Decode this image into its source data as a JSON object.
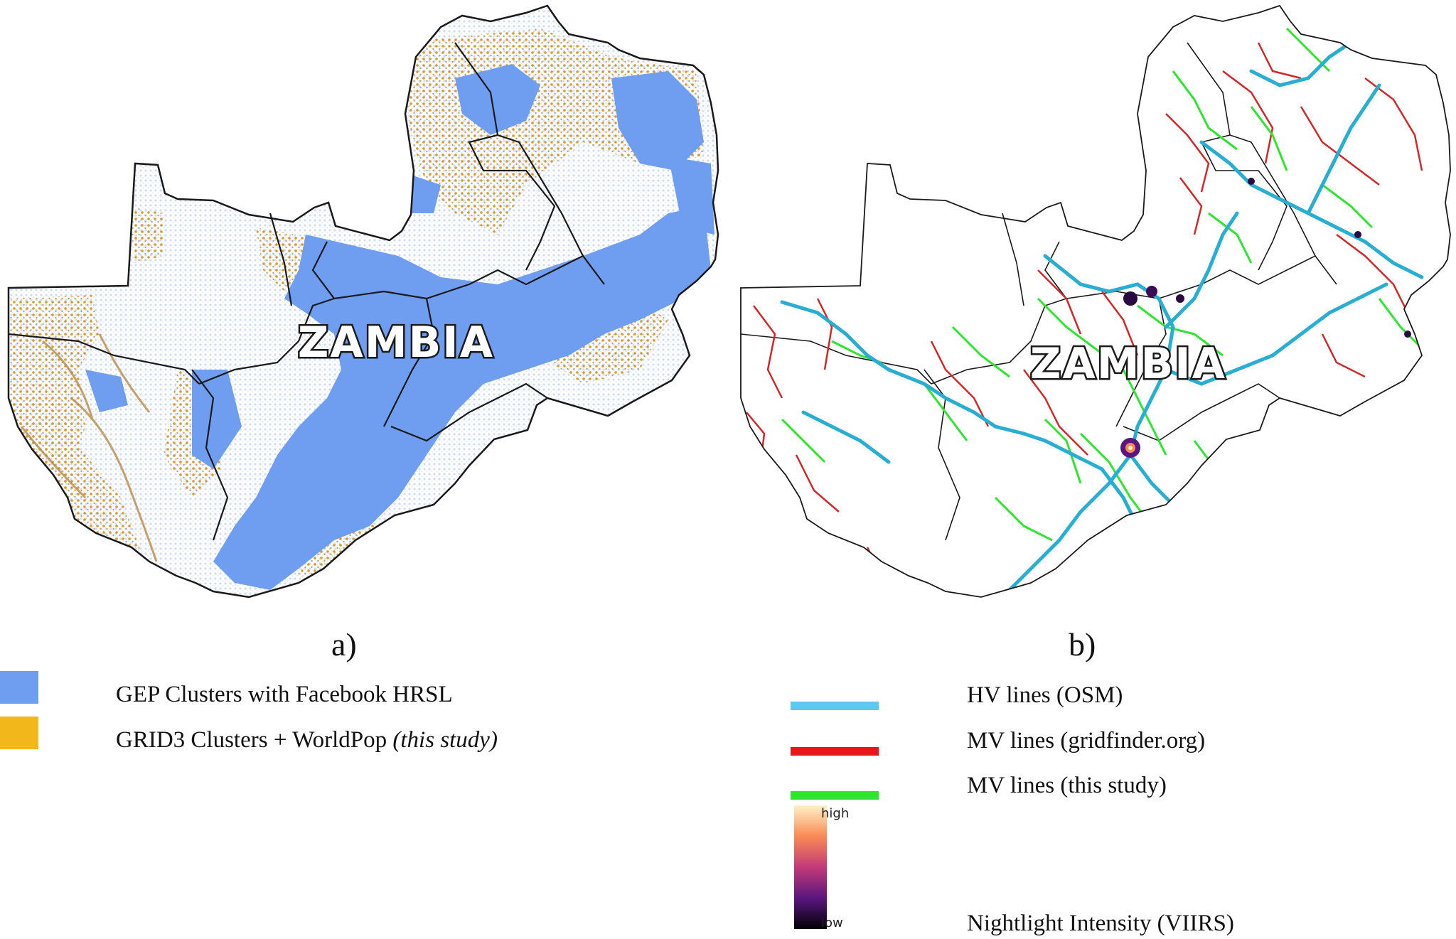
{
  "panels": {
    "a": {
      "country_label": "ZAMBIA",
      "caption": "a)",
      "legend": [
        {
          "label": "GEP Clusters with Facebook HRSL",
          "label_suffix": "",
          "color": "#6f9ef0"
        },
        {
          "label": "GRID3 Clusters + WorldPop ",
          "label_suffix": "(this study)",
          "color": "#f2b71a"
        }
      ]
    },
    "b": {
      "country_label": "ZAMBIA",
      "caption": "b)",
      "legend": [
        {
          "label": "HV lines (OSM)",
          "color": "#5fc8f0"
        },
        {
          "label": "MV lines (gridfinder.org)",
          "color": "#ec1414"
        },
        {
          "label": "MV lines (this study)",
          "color": "#2ee62e"
        }
      ],
      "nightlight": {
        "label": "Nightlight Intensity (VIIRS)",
        "high": "high",
        "low": "low",
        "colors": [
          "#fff2c6",
          "#f98a55",
          "#c33a78",
          "#5a1680",
          "#000004"
        ]
      }
    }
  },
  "colors": {
    "hv_line": "#29aed3",
    "mv_gridfinder": "#d22828",
    "mv_study": "#2ee62e",
    "boundary": "#1a1a1a",
    "settlement_light": "#dbe6f6",
    "gep": "#6f9ef0",
    "grid3": "#d79a2c"
  }
}
